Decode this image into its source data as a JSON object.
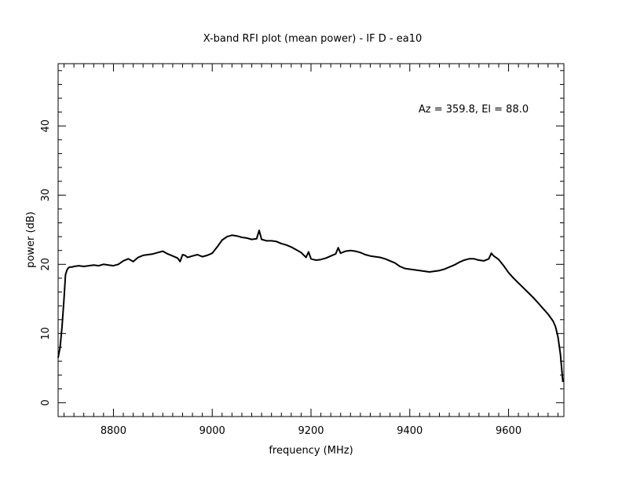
{
  "chart_data": {
    "type": "line",
    "title": "X-band RFI plot (mean power) - IF D - ea10",
    "xlabel": "frequency (MHz)",
    "ylabel": "power (dB)",
    "annotation": "Az = 359.8, El = 88.0",
    "xlim": [
      8688,
      9712
    ],
    "ylim": [
      -2,
      49
    ],
    "xticks": [
      8800,
      9000,
      9200,
      9400,
      9600
    ],
    "yticks": [
      0,
      10,
      20,
      30,
      40
    ],
    "grid": false,
    "series": [
      {
        "color": "#000000",
        "x": [
          8688,
          8692,
          8696,
          8700,
          8703,
          8706,
          8709,
          8712,
          8716,
          8720,
          8730,
          8740,
          8750,
          8760,
          8770,
          8780,
          8790,
          8800,
          8810,
          8820,
          8830,
          8840,
          8850,
          8860,
          8870,
          8880,
          8890,
          8900,
          8910,
          8920,
          8930,
          8935,
          8940,
          8945,
          8950,
          8960,
          8970,
          8980,
          8990,
          9000,
          9010,
          9020,
          9030,
          9040,
          9050,
          9060,
          9070,
          9080,
          9090,
          9095,
          9100,
          9105,
          9110,
          9120,
          9130,
          9140,
          9150,
          9160,
          9170,
          9180,
          9190,
          9195,
          9200,
          9205,
          9210,
          9220,
          9230,
          9240,
          9250,
          9255,
          9260,
          9270,
          9280,
          9290,
          9300,
          9310,
          9320,
          9330,
          9340,
          9350,
          9360,
          9370,
          9380,
          9390,
          9400,
          9410,
          9420,
          9430,
          9440,
          9450,
          9460,
          9470,
          9480,
          9490,
          9500,
          9510,
          9520,
          9530,
          9540,
          9550,
          9560,
          9565,
          9570,
          9580,
          9590,
          9600,
          9610,
          9620,
          9630,
          9640,
          9650,
          9660,
          9670,
          9680,
          9690,
          9695,
          9700,
          9705,
          9710
        ],
        "values": [
          6.5,
          8,
          11,
          15,
          18.5,
          19.2,
          19.5,
          19.6,
          19.6,
          19.7,
          19.8,
          19.7,
          19.8,
          19.9,
          19.8,
          20.0,
          19.9,
          19.8,
          20.0,
          20.5,
          20.8,
          20.4,
          21.0,
          21.3,
          21.4,
          21.5,
          21.7,
          21.9,
          21.5,
          21.2,
          20.9,
          20.4,
          21.4,
          21.3,
          21.0,
          21.2,
          21.4,
          21.1,
          21.3,
          21.6,
          22.5,
          23.5,
          24.0,
          24.2,
          24.1,
          23.9,
          23.8,
          23.6,
          23.7,
          24.9,
          23.6,
          23.5,
          23.4,
          23.4,
          23.3,
          23.0,
          22.8,
          22.5,
          22.1,
          21.7,
          21.0,
          21.8,
          20.8,
          20.7,
          20.6,
          20.7,
          20.9,
          21.2,
          21.5,
          22.4,
          21.6,
          21.9,
          22.0,
          21.9,
          21.7,
          21.4,
          21.2,
          21.1,
          21.0,
          20.8,
          20.5,
          20.2,
          19.7,
          19.4,
          19.3,
          19.2,
          19.1,
          19.0,
          18.9,
          19.0,
          19.1,
          19.3,
          19.6,
          19.9,
          20.3,
          20.6,
          20.8,
          20.8,
          20.6,
          20.5,
          20.8,
          21.6,
          21.2,
          20.7,
          19.8,
          18.8,
          18.0,
          17.3,
          16.6,
          15.9,
          15.2,
          14.4,
          13.6,
          12.8,
          11.8,
          11.0,
          9.5,
          7.0,
          3.0
        ]
      }
    ]
  }
}
